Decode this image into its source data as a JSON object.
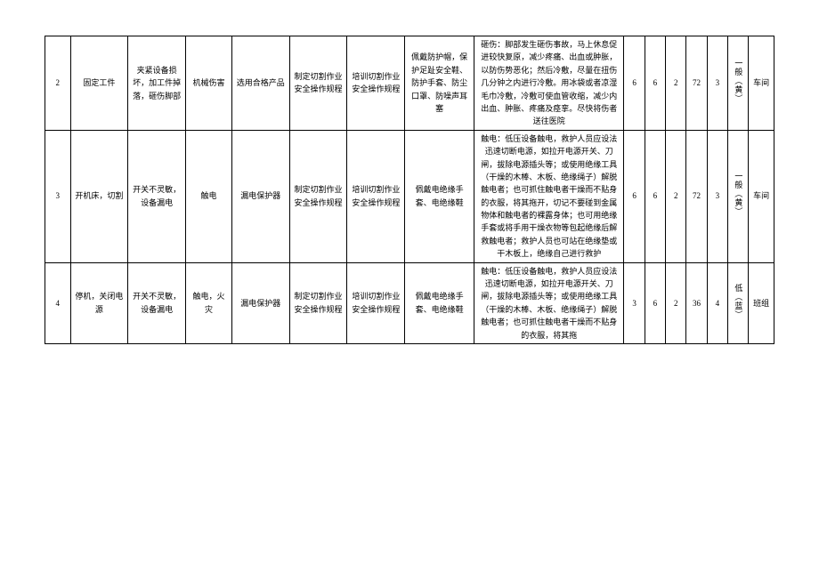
{
  "rows": [
    {
      "idx": "2",
      "step": "固定工件",
      "hazard": "夹紧设备损坏，加工件掉落，砸伤脚部",
      "type": "机械伤害",
      "eng": "选用合格产品",
      "mgmt": "制定切割作业安全操作规程",
      "train": "培训切割作业安全操作规程",
      "ppe": "佩戴防护帽，保护足趾安全鞋、防护手套、防尘口罩、防噪声耳塞",
      "emerg": "砸伤：脚部发生砸伤事故，马上休息促进较快复原，减少疼痛、出血或肿胀，以防伤势恶化；然后冷敷，尽量在扭伤几分钟之内进行冷敷。用冰袋或者凉湿毛巾冷敷，冷敷可使血管收缩，减少内出血、肿胀、疼痛及痉挛。尽快将伤者送往医院",
      "L": "6",
      "E": "6",
      "C": "2",
      "D": "72",
      "grade": "3",
      "level": "一般（黄）",
      "resp": "车间"
    },
    {
      "idx": "3",
      "step": "开机床，切割",
      "hazard": "开关不灵敏，设备漏电",
      "type": "触电",
      "eng": "漏电保护器",
      "mgmt": "制定切割作业安全操作规程",
      "train": "培训切割作业安全操作规程",
      "ppe": "佩戴电绝缘手套、电绝缘鞋",
      "emerg": "触电：低压设备触电，救护人员应设法迅速切断电源，如拉开电源开关、刀闸，拔除电源插头等；或使用绝缘工具（干燥的木棒、木板、绝缘绳子）解脱触电者；也可抓住触电者干燥而不贴身的衣服，将其拖开，切记不要碰到金属物体和触电者的裸露身体；也可用绝缘手套或将手用干燥衣物等包起绝缘后解救触电者；救护人员也可站在绝缘垫或干木板上，绝缘自己进行救护",
      "L": "6",
      "E": "6",
      "C": "2",
      "D": "72",
      "grade": "3",
      "level": "一般（黄）",
      "resp": "车间"
    },
    {
      "idx": "4",
      "step": "停机，关闭电源",
      "hazard": "开关不灵敏，设备漏电",
      "type": "触电，火灾",
      "eng": "漏电保护器",
      "mgmt": "制定切割作业安全操作规程",
      "train": "培训切割作业安全操作规程",
      "ppe": "佩戴电绝缘手套、电绝缘鞋",
      "emerg": "触电：低压设备触电，救护人员应设法迅速切断电源，如拉开电源开关、刀闸，拔除电源插头等；或使用绝缘工具（干燥的木棒、木板、绝缘绳子）解脱触电者；也可抓住触电者干燥而不贴身的衣服，将其拖",
      "L": "3",
      "E": "6",
      "C": "2",
      "D": "36",
      "grade": "4",
      "level": "低（蓝）",
      "resp": "班组"
    }
  ]
}
